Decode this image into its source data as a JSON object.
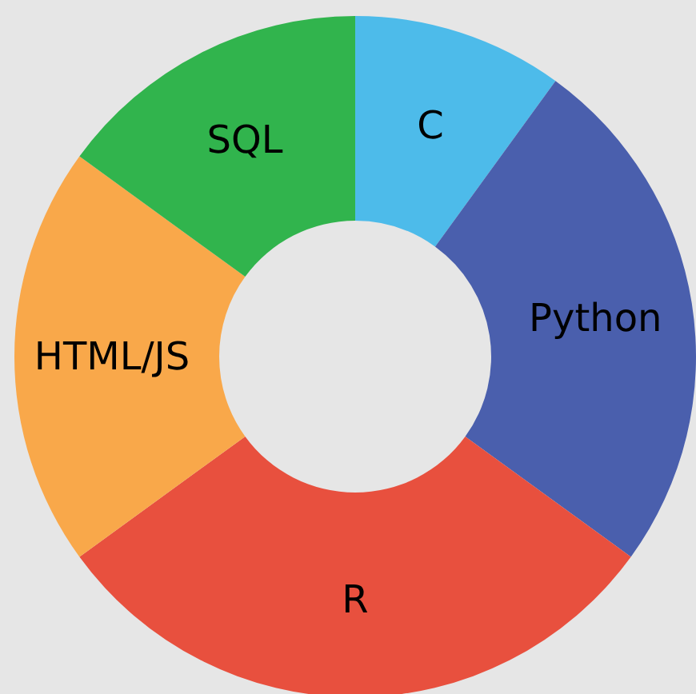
{
  "chart_data": {
    "type": "donut",
    "categories": [
      "C",
      "Python",
      "R",
      "HTML/JS",
      "SQL"
    ],
    "values": [
      10,
      25,
      30,
      20,
      15
    ],
    "colors": [
      "#4dbbea",
      "#4a5fad",
      "#e8503e",
      "#f9a84a",
      "#31b44d"
    ],
    "legend": false
  }
}
